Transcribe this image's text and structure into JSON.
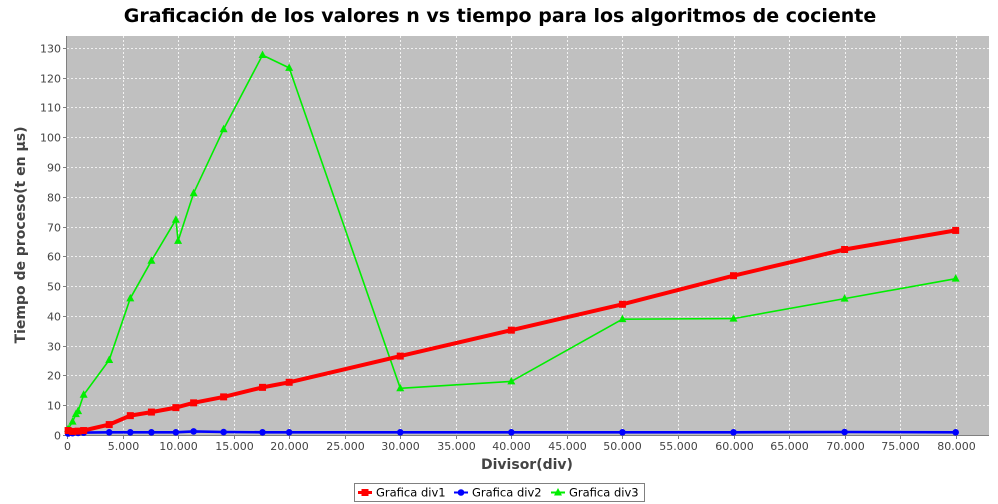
{
  "chart_data": {
    "type": "line",
    "title": "Graficación de los valores n vs tiempo para los algoritmos de cociente",
    "xlabel": "Divisor(div)",
    "ylabel": "Tiempo de proceso(t en µs)",
    "xlim": [
      0,
      83000
    ],
    "ylim": [
      0,
      134
    ],
    "xticks": [
      0,
      5000,
      10000,
      15000,
      20000,
      25000,
      30000,
      35000,
      40000,
      45000,
      50000,
      55000,
      60000,
      65000,
      70000,
      75000,
      80000
    ],
    "xtick_labels": [
      "0",
      "5.000",
      "10.000",
      "15.000",
      "20.000",
      "25.000",
      "30.000",
      "35.000",
      "40.000",
      "45.000",
      "50.000",
      "55.000",
      "60.000",
      "65.000",
      "70.000",
      "75.000",
      "80.000"
    ],
    "yticks": [
      0,
      10,
      20,
      30,
      40,
      50,
      60,
      70,
      80,
      90,
      100,
      110,
      120,
      130
    ],
    "ytick_labels": [
      "0",
      "10",
      "20",
      "30",
      "40",
      "50",
      "60",
      "70",
      "80",
      "90",
      "100",
      "110",
      "120",
      "130"
    ],
    "grid": true,
    "legend_position": "bottom",
    "colors": {
      "plot_background": "#c0c0c0",
      "grid": "#ffffff"
    },
    "series": [
      {
        "name": "Grafica div1",
        "color": "#ff0000",
        "marker": "square",
        "x": [
          100,
          500,
          1000,
          1500,
          3800,
          5700,
          7600,
          9800,
          11400,
          14100,
          17600,
          20000,
          30000,
          40000,
          50000,
          60000,
          70000,
          80000
        ],
        "y": [
          1.5,
          1.2,
          1.3,
          1.5,
          3.5,
          6.5,
          7.7,
          9.2,
          10.8,
          12.8,
          16.0,
          17.7,
          26.5,
          35.2,
          43.9,
          53.5,
          62.3,
          68.7
        ]
      },
      {
        "name": "Grafica div2",
        "color": "#0000ff",
        "marker": "circle",
        "x": [
          100,
          500,
          1000,
          1500,
          3800,
          5700,
          7600,
          9800,
          11400,
          14100,
          17600,
          20000,
          30000,
          40000,
          50000,
          60000,
          70000,
          80000
        ],
        "y": [
          0.5,
          0.6,
          0.7,
          0.8,
          0.9,
          0.9,
          0.9,
          0.9,
          1.2,
          1.0,
          0.9,
          0.9,
          0.9,
          0.9,
          0.9,
          0.9,
          1.0,
          0.9
        ]
      },
      {
        "name": "Grafica div3",
        "color": "#00ee00",
        "marker": "triangle",
        "x": [
          100,
          500,
          800,
          1000,
          1500,
          3800,
          5700,
          7600,
          9800,
          10000,
          11400,
          14100,
          17600,
          20000,
          30000,
          40000,
          50000,
          60000,
          70000,
          80000
        ],
        "y": [
          2.0,
          4.5,
          7.0,
          8.0,
          13.5,
          25.2,
          45.9,
          58.5,
          72.3,
          65.2,
          81.2,
          102.7,
          127.6,
          123.3,
          15.7,
          18.0,
          38.9,
          39.1,
          45.8,
          52.5
        ]
      }
    ]
  }
}
